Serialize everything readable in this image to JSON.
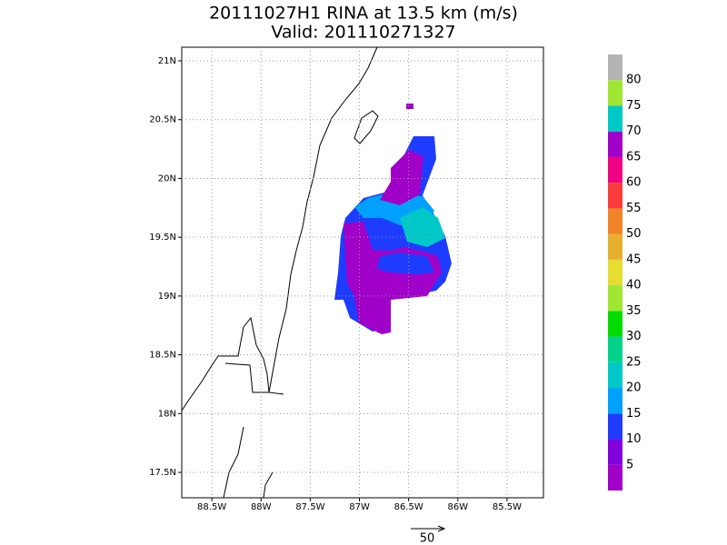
{
  "title": "20111027H1  RINA at 13.5 km (m/s)",
  "subtitle": "Valid: 201110271327",
  "map": {
    "xlim": [
      -88.806,
      -85.13
    ],
    "ylim": [
      17.284,
      21.116
    ],
    "xticks": [
      {
        "value": -88.5,
        "label": "88.5W"
      },
      {
        "value": -88,
        "label": "88W"
      },
      {
        "value": -87.5,
        "label": "87.5W"
      },
      {
        "value": -87,
        "label": "87W"
      },
      {
        "value": -86.5,
        "label": "86.5W"
      },
      {
        "value": -86,
        "label": "86W"
      },
      {
        "value": -85.5,
        "label": "85.5W"
      }
    ],
    "yticks": [
      {
        "value": 17.5,
        "label": "17.5N"
      },
      {
        "value": 18,
        "label": "18N"
      },
      {
        "value": 18.5,
        "label": "18.5N"
      },
      {
        "value": 19,
        "label": "19N"
      },
      {
        "value": 19.5,
        "label": "19.5N"
      },
      {
        "value": 20,
        "label": "20N"
      },
      {
        "value": 20.5,
        "label": "20.5N"
      },
      {
        "value": 21,
        "label": "21N"
      }
    ],
    "grid": true
  },
  "colorbar": {
    "levels": [
      5,
      10,
      15,
      20,
      25,
      30,
      35,
      40,
      45,
      50,
      55,
      60,
      65,
      70,
      75,
      80
    ],
    "colors": [
      "#a000c8",
      "#8200dc",
      "#1e3cff",
      "#00a0ff",
      "#00c8c8",
      "#00d28c",
      "#00dc00",
      "#a0e632",
      "#e6dc32",
      "#e6af2d",
      "#f08228",
      "#fa3c3c",
      "#f00082",
      "#a000c8",
      "#00c8c8",
      "#a0e632",
      "#b4b4b4"
    ]
  },
  "reference_vector": {
    "label": "50"
  }
}
